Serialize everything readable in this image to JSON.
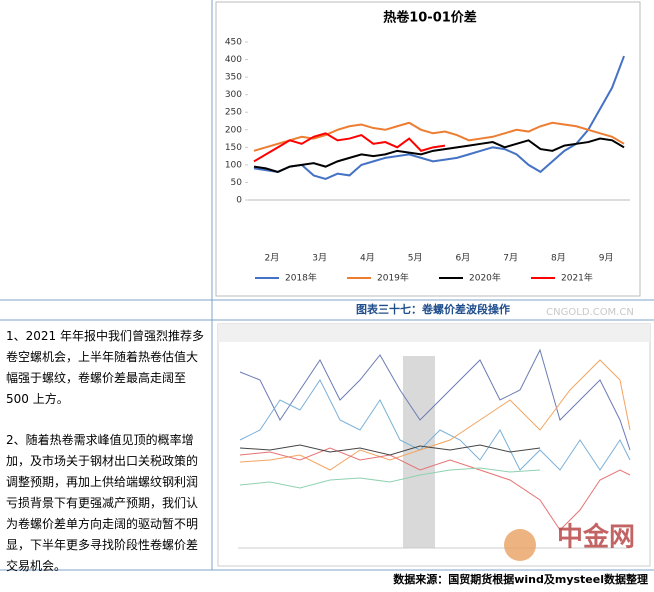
{
  "chart_data": {
    "type": "line",
    "title": "热卷10-01价差",
    "categories": [
      "2月",
      null,
      null,
      null,
      "3月",
      null,
      null,
      null,
      "4月",
      null,
      null,
      null,
      "5月",
      null,
      null,
      null,
      "6月",
      null,
      null,
      null,
      "7月",
      null,
      null,
      null,
      "8月",
      null,
      null,
      null,
      "9月",
      null,
      null,
      null
    ],
    "series": [
      {
        "name": "2018年",
        "color": "#4472c4",
        "values": [
          90,
          85,
          80,
          95,
          100,
          70,
          60,
          75,
          70,
          100,
          110,
          120,
          125,
          130,
          120,
          110,
          115,
          120,
          130,
          140,
          150,
          145,
          130,
          100,
          80,
          110,
          140,
          160,
          200,
          260,
          320,
          410
        ]
      },
      {
        "name": "2019年",
        "color": "#ed7d31",
        "values": [
          140,
          150,
          160,
          170,
          180,
          175,
          185,
          200,
          210,
          215,
          205,
          200,
          210,
          220,
          200,
          190,
          195,
          185,
          170,
          175,
          180,
          190,
          200,
          195,
          210,
          220,
          215,
          210,
          200,
          190,
          180,
          160
        ]
      },
      {
        "name": "2020年",
        "color": "#000000",
        "values": [
          95,
          90,
          80,
          95,
          100,
          105,
          95,
          110,
          120,
          130,
          125,
          130,
          140,
          135,
          130,
          140,
          145,
          150,
          155,
          160,
          165,
          150,
          160,
          170,
          145,
          140,
          155,
          160,
          165,
          175,
          170,
          150
        ]
      },
      {
        "name": "2021年",
        "color": "#ff0000",
        "values": [
          110,
          130,
          150,
          170,
          160,
          180,
          190,
          170,
          175,
          185,
          160,
          165,
          150,
          175,
          140,
          150,
          155,
          null,
          null,
          null,
          null,
          null,
          null,
          null,
          null,
          null,
          null,
          null,
          null,
          null,
          null,
          null
        ]
      }
    ],
    "ylim": [
      0,
      450
    ],
    "yticks": [
      0,
      50,
      100,
      150,
      200,
      250,
      300,
      350,
      400,
      450
    ],
    "grid": false,
    "legend": "bottom"
  },
  "document": {
    "caption": "图表三十七：卷螺价差波段操作",
    "paragraphs": [
      "1、2021 年年报中我们曾强烈推荐多卷空螺机会，上半年随着热卷估值大幅强于螺纹，卷螺价差最高走阔至 500 上方。",
      "2、随着热卷需求峰值见顶的概率增加，及市场关于钢材出口关税政策的调整预期，再加上供给端螺纹钢利润亏损背景下有更强减产预期，我们认为卷螺价差单方向走阔的驱动暂不明显，下半年更多寻找阶段性卷螺价差交易机会。"
    ],
    "source": "数据来源：国贸期货根据wind及mysteel数据整理",
    "watermark": "中金网",
    "watermark_url": "CNGOLD.COM.CN"
  }
}
